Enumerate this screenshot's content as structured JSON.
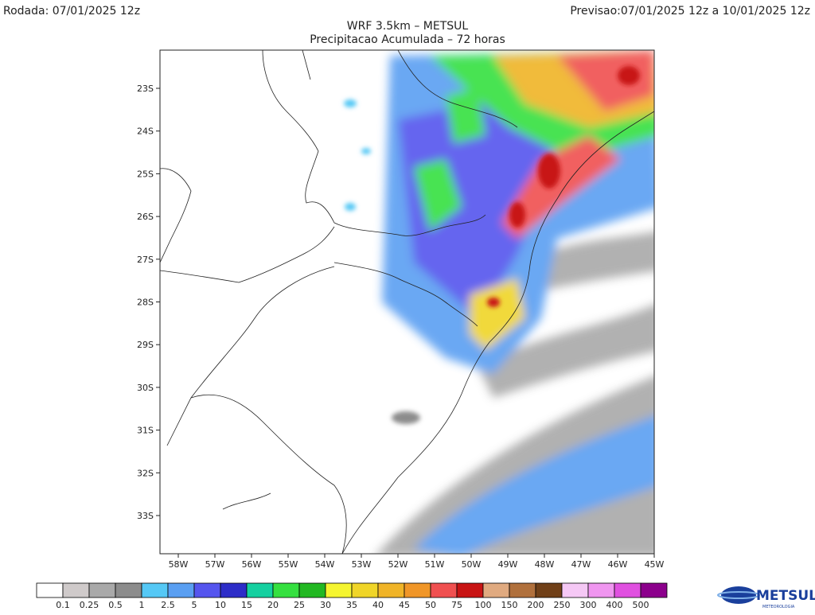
{
  "header": {
    "run": "Rodada: 07/01/2025 12z",
    "forecast": "Previsao:07/01/2025 12z a 10/01/2025 12z",
    "title": "WRF 3.5km – METSUL",
    "subtitle": "Precipitacao Acumulada – 72 horas"
  },
  "map": {
    "lat_labels": [
      "23S",
      "24S",
      "25S",
      "26S",
      "27S",
      "28S",
      "29S",
      "30S",
      "31S",
      "32S",
      "33S"
    ],
    "lon_labels": [
      "58W",
      "57W",
      "56W",
      "55W",
      "54W",
      "53W",
      "52W",
      "51W",
      "50W",
      "49W",
      "48W",
      "47W",
      "46W",
      "45W"
    ]
  },
  "colorbar": {
    "colors": [
      "#ffffff",
      "#cfcaca",
      "#a9a9a9",
      "#8c8c8c",
      "#55c8f5",
      "#5a9ff2",
      "#5555ee",
      "#2d2dc8",
      "#15d0a0",
      "#35e040",
      "#22b822",
      "#f5f530",
      "#f0d528",
      "#f0b428",
      "#f09628",
      "#f05050",
      "#c81414",
      "#e0aa80",
      "#b0703c",
      "#704018",
      "#f5c8f5",
      "#f096f0",
      "#e050e0",
      "#8c008c"
    ],
    "labels": [
      "0.1",
      "0.25",
      "0.5",
      "1",
      "2.5",
      "5",
      "10",
      "15",
      "20",
      "25",
      "30",
      "35",
      "40",
      "45",
      "50",
      "75",
      "100",
      "150",
      "200",
      "250",
      "300",
      "400",
      "500"
    ]
  },
  "logo": {
    "name": "METSUL",
    "tagline": "METEOROLOGIA"
  }
}
